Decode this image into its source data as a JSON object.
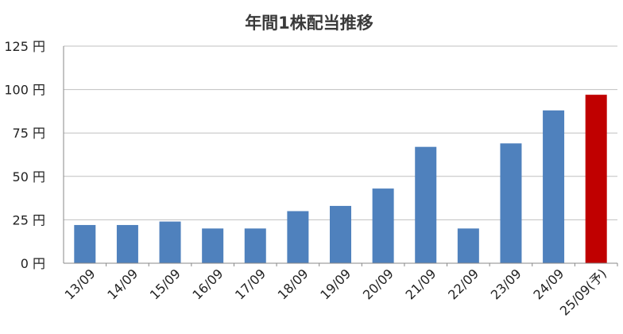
{
  "chart_data": {
    "type": "bar",
    "title": "年間1株配当推移",
    "xlabel": "",
    "ylabel": "",
    "ylim": [
      0,
      125
    ],
    "yticks": [
      0,
      25,
      50,
      75,
      100,
      125
    ],
    "y_unit": "円",
    "grid": true,
    "categories": [
      "13/09",
      "14/09",
      "15/09",
      "16/09",
      "17/09",
      "18/09",
      "19/09",
      "20/09",
      "21/09",
      "22/09",
      "23/09",
      "24/09",
      "25/09(予)"
    ],
    "values": [
      22,
      22,
      24,
      20,
      20,
      30,
      33,
      43,
      67,
      20,
      69,
      88,
      97
    ],
    "colors": {
      "actual": "#4f81bd",
      "forecast": "#c00000",
      "grid": "#c0c0c0",
      "axis": "#888888"
    },
    "highlight_index": 12
  }
}
